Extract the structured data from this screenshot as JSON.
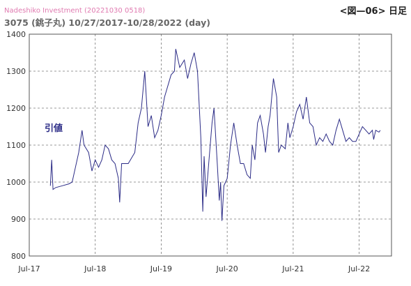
{
  "chart_data": {
    "type": "line",
    "source": "Nadeshiko Investment (20221030 0518)",
    "title": "3075 (銚子丸) 10/27/2017-10/28/2022 (day)",
    "figure_label": "<図—06> 日足",
    "series": [
      {
        "name": "引値",
        "color": "#2b2b86",
        "x": [
          2017.82,
          2017.84,
          2017.86,
          2017.9,
          2018.0,
          2018.1,
          2018.15,
          2018.2,
          2018.25,
          2018.3,
          2018.33,
          2018.4,
          2018.45,
          2018.5,
          2018.55,
          2018.6,
          2018.65,
          2018.7,
          2018.75,
          2018.8,
          2018.85,
          2018.87,
          2018.9,
          2019.0,
          2019.1,
          2019.15,
          2019.2,
          2019.25,
          2019.3,
          2019.35,
          2019.4,
          2019.45,
          2019.5,
          2019.55,
          2019.6,
          2019.65,
          2019.7,
          2019.72,
          2019.78,
          2019.85,
          2019.9,
          2019.95,
          2020.0,
          2020.05,
          2020.1,
          2020.13,
          2020.15,
          2020.18,
          2020.22,
          2020.27,
          2020.3,
          2020.35,
          2020.38,
          2020.4,
          2020.42,
          2020.45,
          2020.5,
          2020.55,
          2020.6,
          2020.65,
          2020.7,
          2020.75,
          2020.8,
          2020.85,
          2020.88,
          2020.92,
          2020.96,
          2021.0,
          2021.05,
          2021.08,
          2021.12,
          2021.15,
          2021.2,
          2021.25,
          2021.28,
          2021.32,
          2021.38,
          2021.42,
          2021.45,
          2021.5,
          2021.55,
          2021.6,
          2021.65,
          2021.7,
          2021.75,
          2021.8,
          2021.85,
          2021.9,
          2021.95,
          2022.0,
          2022.05,
          2022.1,
          2022.15,
          2022.2,
          2022.25,
          2022.3,
          2022.35,
          2022.4,
          2022.45,
          2022.5,
          2022.55,
          2022.6,
          2022.65,
          2022.7,
          2022.72,
          2022.75,
          2022.8,
          2022.82
        ],
        "values": [
          990,
          1060,
          980,
          985,
          990,
          995,
          1000,
          1040,
          1080,
          1140,
          1100,
          1080,
          1030,
          1060,
          1040,
          1060,
          1100,
          1090,
          1060,
          1050,
          1010,
          945,
          1050,
          1050,
          1080,
          1160,
          1200,
          1300,
          1150,
          1180,
          1120,
          1140,
          1180,
          1230,
          1260,
          1290,
          1300,
          1360,
          1310,
          1330,
          1280,
          1320,
          1350,
          1300,
          1120,
          920,
          1070,
          960,
          1050,
          1160,
          1200,
          1050,
          950,
          1000,
          895,
          990,
          1010,
          1100,
          1160,
          1100,
          1050,
          1050,
          1020,
          1010,
          1100,
          1060,
          1160,
          1180,
          1130,
          1080,
          1150,
          1180,
          1280,
          1230,
          1080,
          1100,
          1090,
          1160,
          1120,
          1150,
          1190,
          1210,
          1170,
          1230,
          1160,
          1150,
          1100,
          1120,
          1110,
          1130,
          1110,
          1100,
          1140,
          1170,
          1140,
          1110,
          1120,
          1110,
          1110,
          1130,
          1150,
          1140,
          1130,
          1140,
          1115,
          1140,
          1135,
          1140
        ]
      }
    ],
    "xlim": [
      2017.5,
      2022.99
    ],
    "xticks": [
      {
        "value": 2017.5,
        "label": "Jul-17"
      },
      {
        "value": 2018.5,
        "label": "Jul-18"
      },
      {
        "value": 2019.5,
        "label": "Jul-19"
      },
      {
        "value": 2020.5,
        "label": "Jul-20"
      },
      {
        "value": 2021.5,
        "label": "Jul-21"
      },
      {
        "value": 2022.5,
        "label": "Jul-22"
      }
    ],
    "ylim": [
      800,
      1400
    ],
    "yticks": [
      800,
      900,
      1000,
      1100,
      1200,
      1300,
      1400
    ],
    "grid": true
  }
}
